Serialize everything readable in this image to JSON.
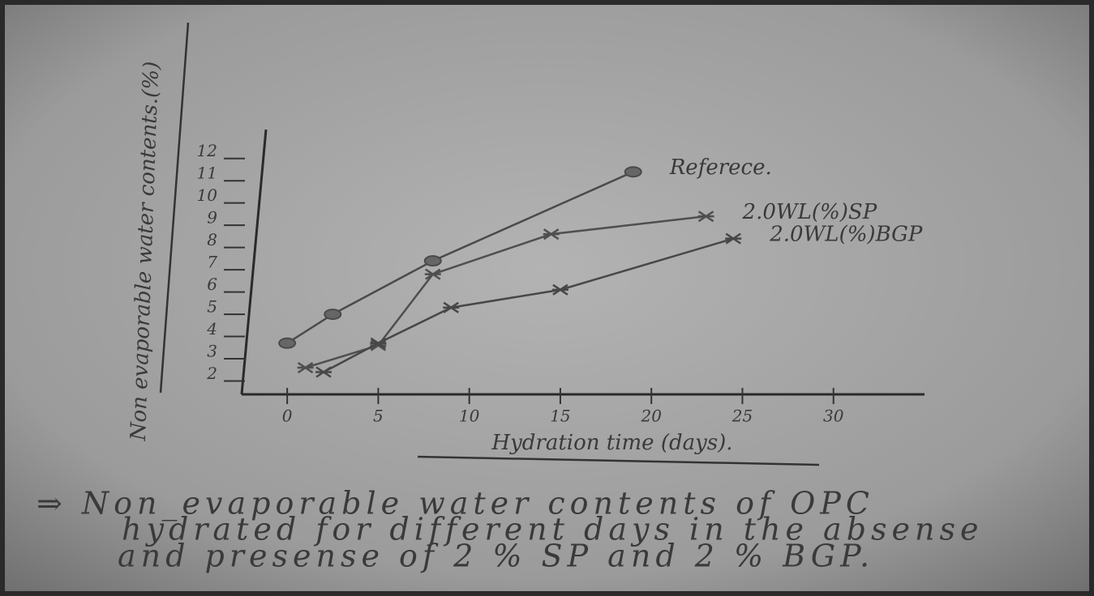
{
  "chart_data": {
    "type": "line",
    "x_label": "Hydration time (days).",
    "y_label": "Non evaporable water contents.(%)",
    "xlim": [
      -2.5,
      35
    ],
    "ylim": [
      1.4,
      13.3
    ],
    "xticks": [
      0,
      5,
      10,
      15,
      20,
      25,
      30
    ],
    "yticks": [
      2,
      3,
      4,
      5,
      6,
      7,
      8,
      9,
      10,
      11,
      12
    ],
    "series": [
      {
        "name": "Referece.",
        "color": "#4a4a4a",
        "marker": "circle",
        "x": [
          0,
          2.5,
          8,
          19
        ],
        "values": [
          3.7,
          5.0,
          7.4,
          11.4
        ]
      },
      {
        "name": "2.0WL(%)SP",
        "color": "#4f4f4f",
        "marker": "star",
        "x": [
          1,
          5,
          8,
          14.5,
          23
        ],
        "values": [
          2.6,
          3.6,
          6.8,
          8.6,
          9.4
        ]
      },
      {
        "name": "2.0WL(%)BGP",
        "color": "#474747",
        "marker": "star",
        "x": [
          2,
          5,
          9,
          15,
          24.5
        ],
        "values": [
          2.4,
          3.7,
          5.3,
          6.1,
          8.4
        ]
      }
    ],
    "caption": [
      "⇒ Non_evaporable water contents of OPC",
      "hydrated for different days in the absense",
      "and presense of 2 % SP and 2 % BGP."
    ]
  }
}
